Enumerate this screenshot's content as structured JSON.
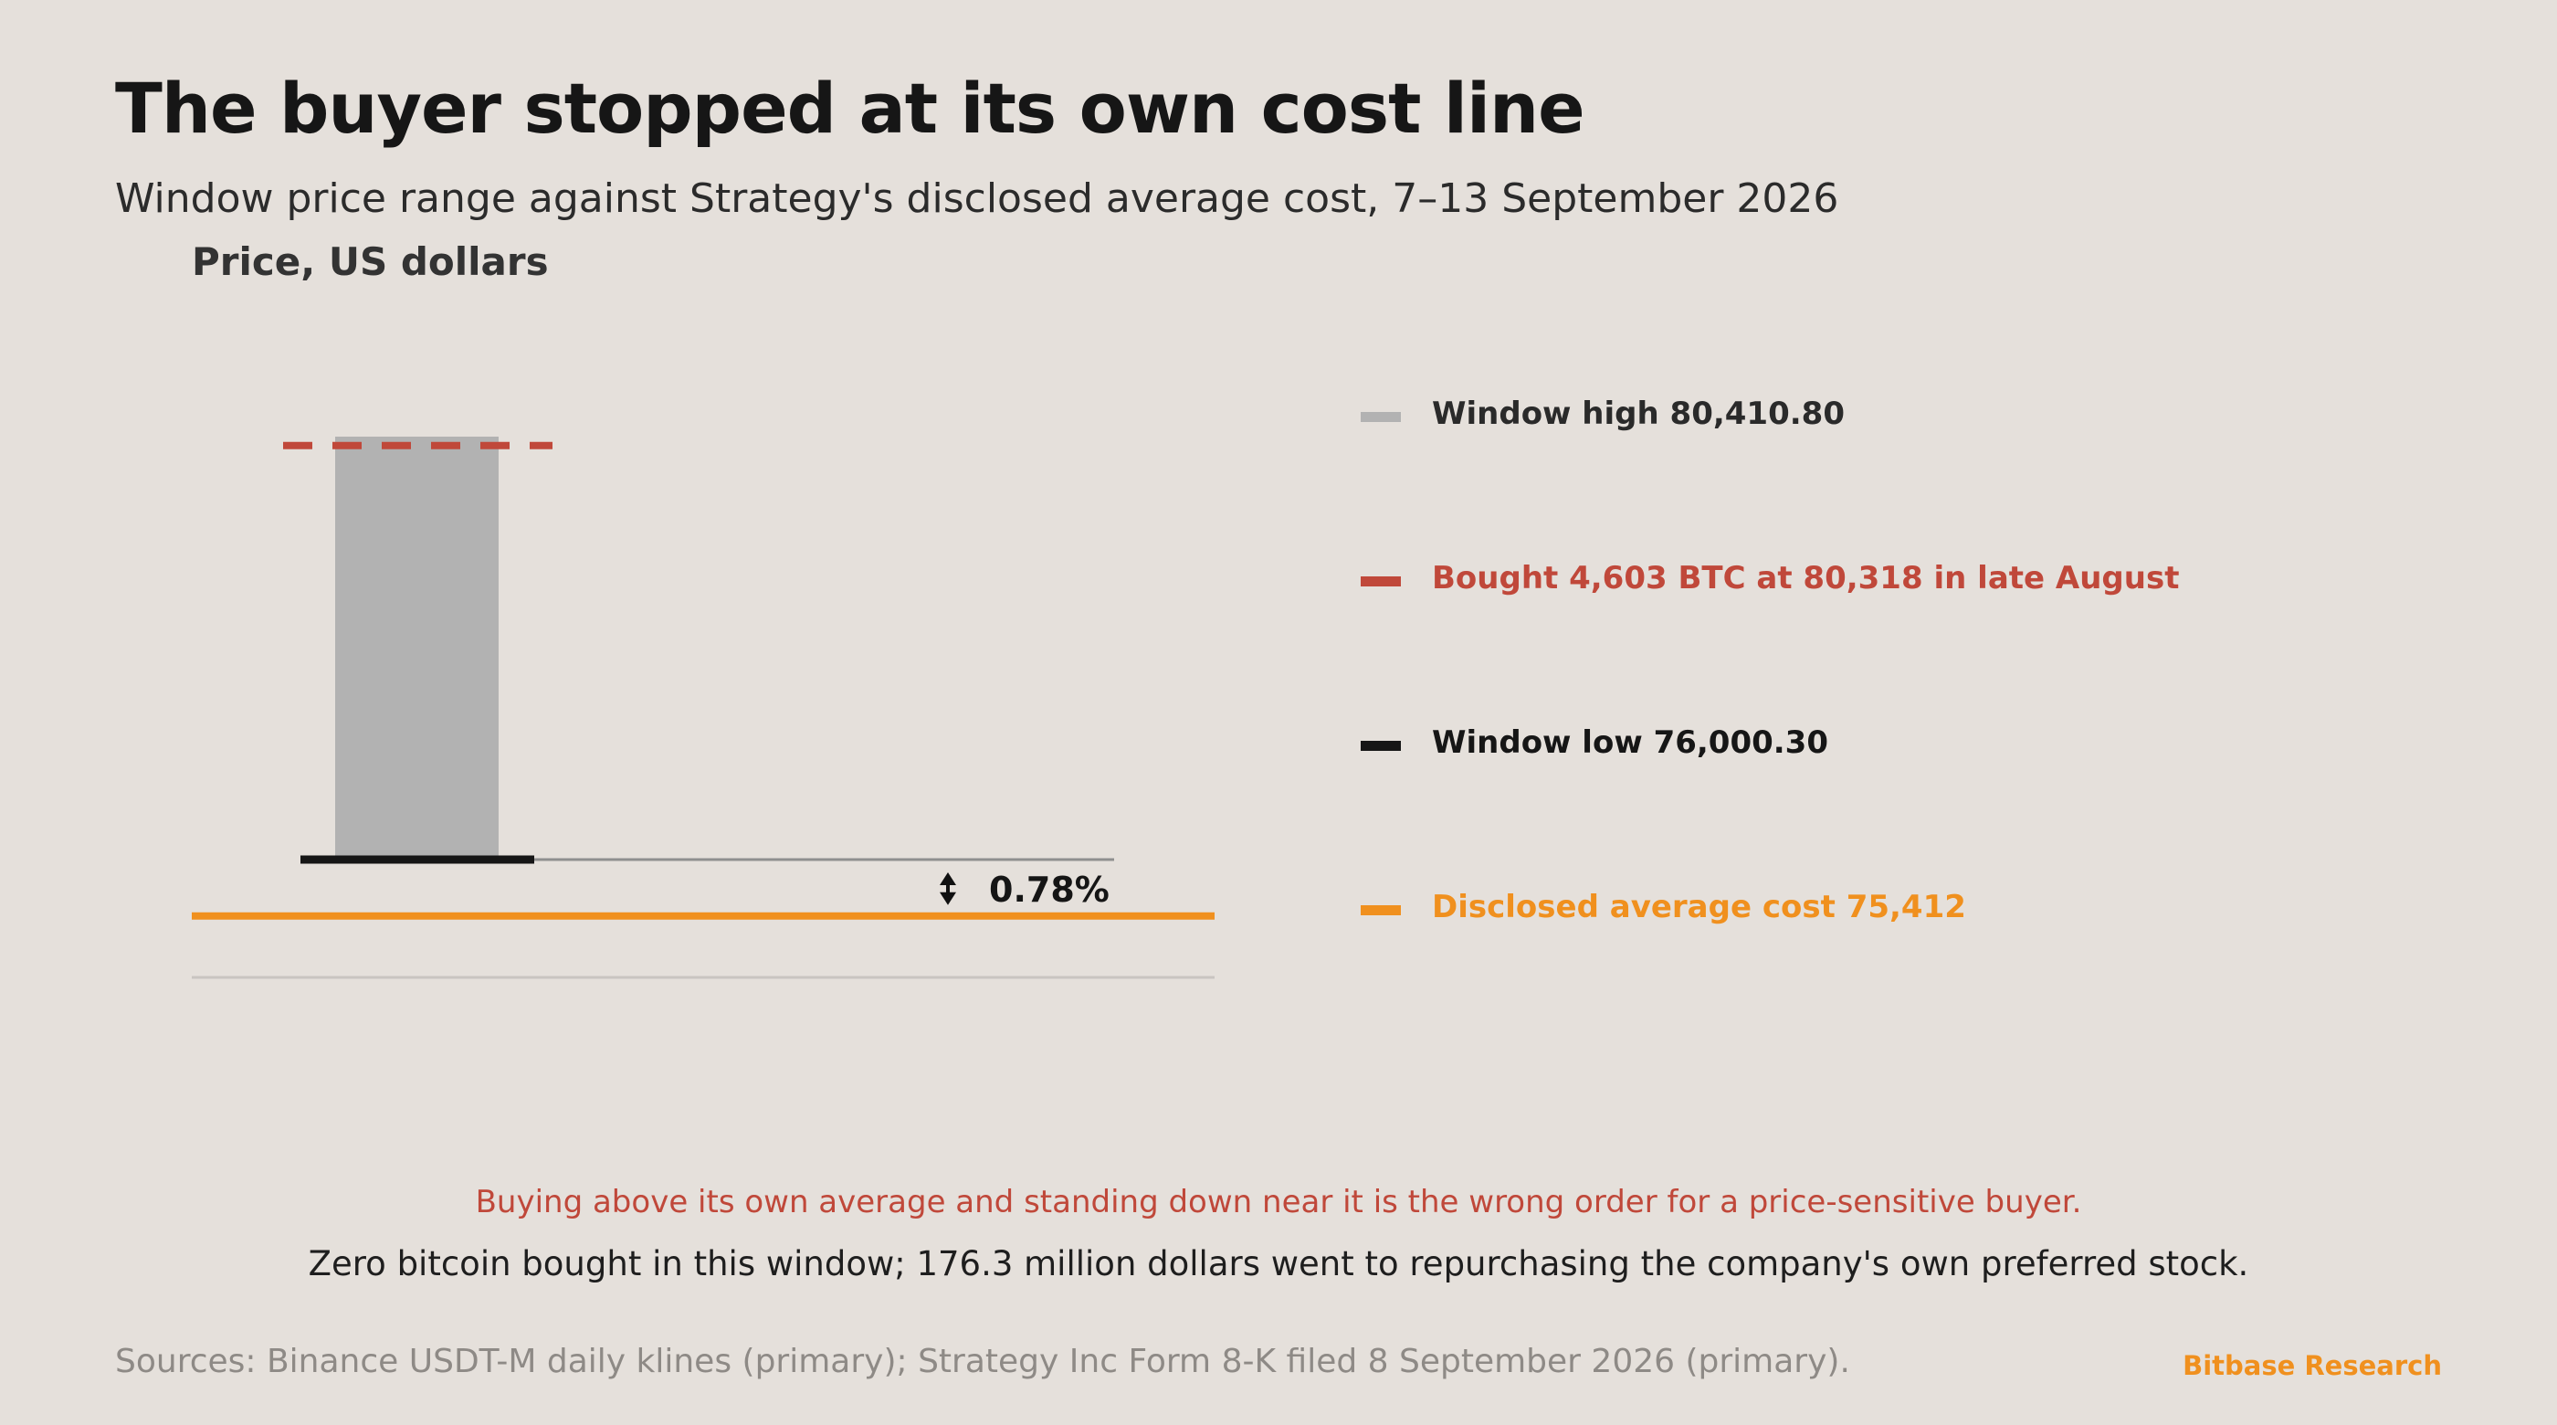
{
  "header": {
    "title": "The buyer stopped at its own cost line",
    "subtitle": "Window price range against Strategy's disclosed average cost, 7–13 September 2026"
  },
  "chart_data": {
    "type": "bar",
    "ylabel": "Price, US dollars",
    "ylim": [
      75000,
      81000
    ],
    "window_range": {
      "low": 76000.3,
      "high": 80410.8
    },
    "reference_lines": [
      {
        "name": "Window high",
        "value": 80410.8
      },
      {
        "name": "Bought 4,603 BTC in late August",
        "value": 80318
      },
      {
        "name": "Window low",
        "value": 76000.3
      },
      {
        "name": "Disclosed average cost",
        "value": 75412
      }
    ],
    "annotation": "0.78%",
    "legend": [
      {
        "label": "Window high 80,410.80",
        "color": "#b2b2b2"
      },
      {
        "label": "Bought 4,603 BTC at 80,318 in late August",
        "color": "#c0483a"
      },
      {
        "label": "Window low 76,000.30",
        "color": "#161616"
      },
      {
        "label": "Disclosed average cost 75,412",
        "color": "#f0901e"
      }
    ],
    "legend_placement": "right",
    "grid": false
  },
  "notes": {
    "red": "Buying above its own average and standing down near it is the wrong order for a price-sensitive buyer.",
    "black": "Zero bitcoin bought in this window; 176.3 million dollars went to repurchasing the company's own preferred stock."
  },
  "footer": {
    "sources": "Sources: Binance USDT-M daily klines (primary); Strategy Inc Form 8-K filed 8 September 2026 (primary).",
    "brand": "Bitbase Research"
  },
  "colors": {
    "background": "#e5e0db",
    "range_bar": "#b2b2b2",
    "purchase": "#c0483a",
    "low": "#161616",
    "cost": "#f0901e",
    "axis": "#c9c5c1"
  }
}
